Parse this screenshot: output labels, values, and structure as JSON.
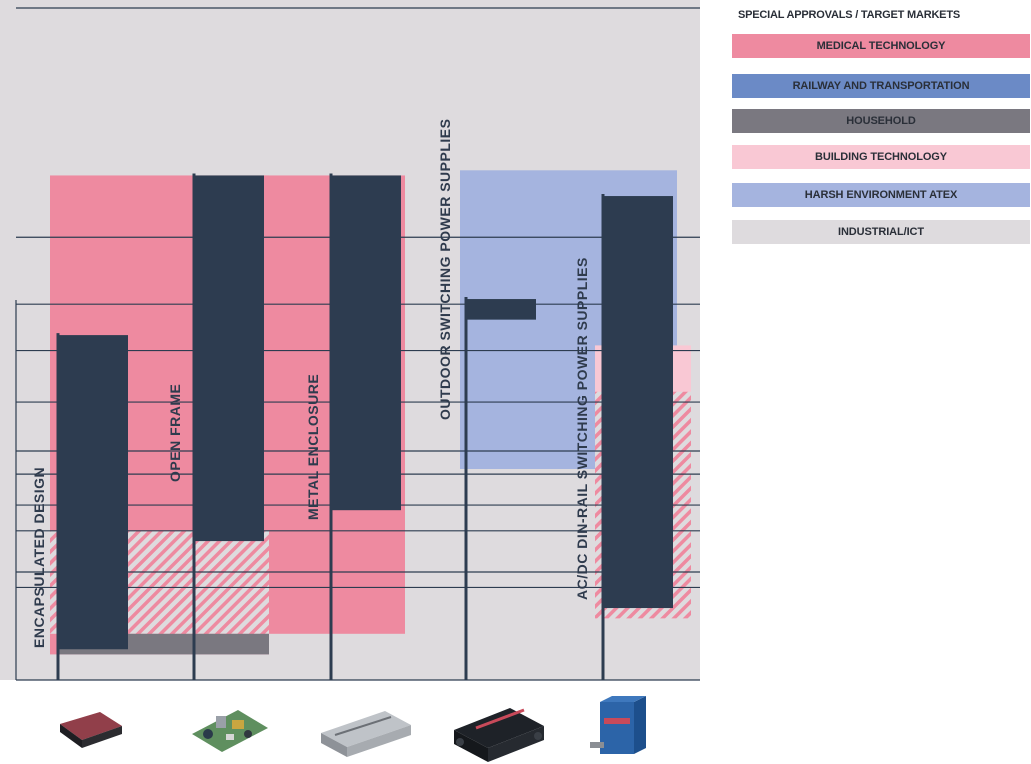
{
  "chart_data": {
    "type": "bar",
    "categories": [
      "ENCAPSULATED DESIGN",
      "OPEN FRAME",
      "METAL ENCLOSURE",
      "OUTDOOR SWITCHING POWER SUPPLIES",
      "AC/DC DIN-RAIL SWITCHING POWER SUPPLIES"
    ],
    "legend": {
      "title": "SPECIAL APPROVALS / TARGET MARKETS",
      "entries": [
        {
          "label": "MEDICAL TECHNOLOGY",
          "color": "#ee8aa0"
        },
        {
          "label": "RAILWAY AND TRANSPORTATION",
          "color": "#6b8ac6"
        },
        {
          "label": "HOUSEHOLD",
          "color": "#7a7880"
        },
        {
          "label": "BUILDING TECHNOLOGY",
          "color": "#f9c8d4"
        },
        {
          "label": "HARSH ENVIRONMENT ATEX",
          "color": "#a5b4df"
        },
        {
          "label": "INDUSTRIAL/ICT",
          "color": "#dedbde"
        }
      ]
    },
    "colors": {
      "background": "#dedbde",
      "medical": "#ee8aa0",
      "household": "#7a7880",
      "building": "#f9c8d4",
      "atex": "#a5b4df",
      "railway": "#2d3c50",
      "stem": "#2d3c50"
    },
    "ylim": [
      0,
      100
    ],
    "grid": true,
    "gridlines": [
      17,
      20,
      28,
      33,
      39,
      43.5,
      53,
      63,
      72,
      85
    ],
    "regions": [
      {
        "market": "medical",
        "from_bar": 0,
        "to_bar": 1,
        "y0": 4,
        "y1": 97
      },
      {
        "market": "medical",
        "from_bar": 2,
        "to_bar": 2,
        "y0": 8,
        "y1": 97
      },
      {
        "market": "medical_hatched",
        "from_bar": 0,
        "to_bar": 1,
        "y0": 8,
        "y1": 28
      },
      {
        "market": "household",
        "from_bar": 0,
        "to_bar": 1,
        "y0": 4,
        "y1": 8
      },
      {
        "market": "atex",
        "from_bar": 3,
        "to_bar": 4,
        "y0": 40,
        "y1": 98
      },
      {
        "market": "building",
        "from_bar": 4,
        "to_bar": 4,
        "y0": 11,
        "y1": 64
      },
      {
        "market": "building_hatched",
        "from_bar": 4,
        "to_bar": 4,
        "y0": 11,
        "y1": 55
      }
    ],
    "series": [
      {
        "bar": 0,
        "y0": 5,
        "y1": 66
      },
      {
        "bar": 1,
        "y0": 26,
        "y1": 97
      },
      {
        "bar": 2,
        "y0": 32,
        "y1": 97
      },
      {
        "bar": 3,
        "y0": 69,
        "y1": 73
      },
      {
        "bar": 4,
        "y0": 13,
        "y1": 93
      }
    ]
  }
}
